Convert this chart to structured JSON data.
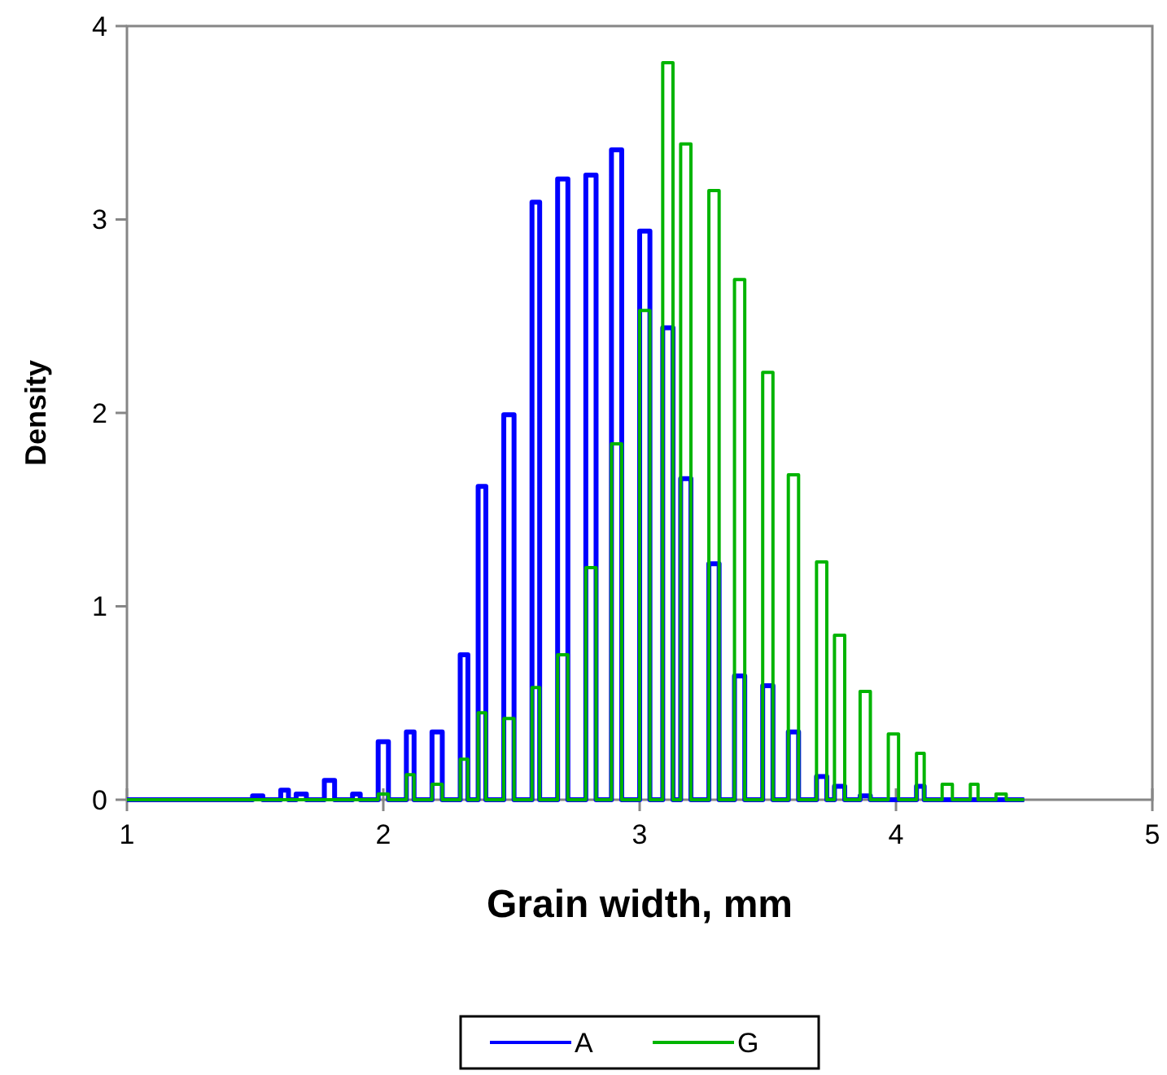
{
  "chart_data": {
    "type": "step",
    "xlabel": "Grain width, mm",
    "ylabel": "Density",
    "x": [
      1,
      1.49,
      1.53,
      1.6,
      1.63,
      1.66,
      1.7,
      1.77,
      1.81,
      1.88,
      1.91,
      1.98,
      2.02,
      2.09,
      2.12,
      2.19,
      2.23,
      2.3,
      2.33,
      2.37,
      2.4,
      2.47,
      2.51,
      2.58,
      2.61,
      2.68,
      2.72,
      2.79,
      2.83,
      2.89,
      2.93,
      3.0,
      3.04,
      3.09,
      3.13,
      3.16,
      3.2,
      3.27,
      3.31,
      3.37,
      3.41,
      3.48,
      3.52,
      3.58,
      3.62,
      3.69,
      3.73,
      3.76,
      3.8,
      3.86,
      3.9,
      3.97,
      4.01,
      4.08,
      4.11,
      4.18,
      4.22,
      4.29,
      4.32,
      4.39,
      4.43,
      4.5
    ],
    "series": [
      {
        "name": "A",
        "color": "#0000ff",
        "values": [
          0,
          0.02,
          0,
          0.05,
          0,
          0.03,
          0,
          0.1,
          0,
          0.03,
          0,
          0.3,
          0,
          0.35,
          0,
          0.35,
          0,
          0.75,
          0,
          1.62,
          0,
          1.99,
          0,
          3.09,
          0,
          3.21,
          0,
          3.23,
          0,
          3.36,
          0,
          2.94,
          0,
          2.44,
          0,
          1.66,
          0,
          1.22,
          0,
          0.64,
          0,
          0.59,
          0,
          0.35,
          0,
          0.12,
          0,
          0.07,
          0,
          0.02,
          0,
          0,
          0,
          0.07,
          0,
          0,
          0,
          0,
          0,
          0,
          0,
          0
        ]
      },
      {
        "name": "G",
        "color": "#00b400",
        "values": [
          0,
          0,
          0,
          0,
          0,
          0,
          0,
          0,
          0,
          0,
          0,
          0.03,
          0,
          0.13,
          0,
          0.08,
          0,
          0.21,
          0,
          0.45,
          0,
          0.42,
          0,
          0.58,
          0,
          0.75,
          0,
          1.2,
          0,
          1.84,
          0,
          2.53,
          0,
          3.81,
          0,
          3.39,
          0,
          3.15,
          0,
          2.69,
          0,
          2.21,
          0,
          1.68,
          0,
          1.23,
          0,
          0.85,
          0,
          0.56,
          0,
          0.34,
          0,
          0.24,
          0,
          0.08,
          0,
          0.08,
          0,
          0.03,
          0,
          0
        ]
      }
    ],
    "xlim": [
      1,
      5
    ],
    "xticks": [
      1,
      2,
      3,
      4,
      5
    ],
    "ylim": [
      0,
      4
    ],
    "yticks": [
      0,
      1,
      2,
      3,
      4
    ],
    "grid": false,
    "legend": "bottom"
  }
}
